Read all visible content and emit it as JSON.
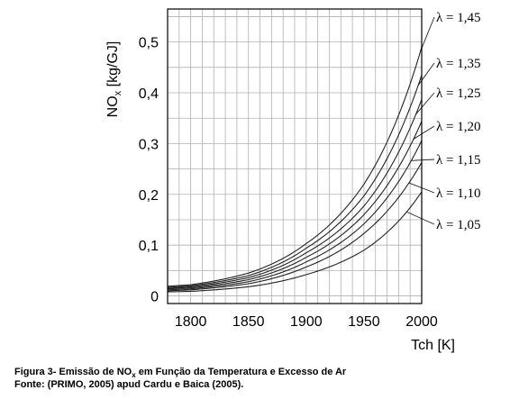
{
  "chart_data": {
    "type": "line",
    "xlabel": "Tch [K]",
    "ylabel": "NOx [kg/GJ]",
    "ylabel_main": "NO",
    "ylabel_sub": "x",
    "ylabel_rest": " [kg/GJ]",
    "xlim": [
      1780,
      2000
    ],
    "ylim": [
      -0.015,
      0.565
    ],
    "x_ticks": [
      1800,
      1850,
      1900,
      1950,
      2000
    ],
    "x_tick_labels": [
      "1800",
      "1850",
      "1900",
      "1950",
      "2000"
    ],
    "y_ticks": [
      0,
      0.1,
      0.2,
      0.3,
      0.4,
      0.5
    ],
    "y_tick_labels": [
      "0",
      "0,1",
      "0,2",
      "0,3",
      "0,4",
      "0,5"
    ],
    "grid": true,
    "legend_placement": "right",
    "series": [
      {
        "name": "λ = 1,45",
        "x": [
          1780,
          1800,
          1850,
          1900,
          1950,
          2000
        ],
        "y": [
          0.019,
          0.022,
          0.045,
          0.103,
          0.22,
          0.49
        ]
      },
      {
        "name": "λ = 1,35",
        "x": [
          1780,
          1800,
          1850,
          1900,
          1950,
          2000
        ],
        "y": [
          0.017,
          0.02,
          0.04,
          0.094,
          0.197,
          0.435
        ]
      },
      {
        "name": "λ = 1,25",
        "x": [
          1780,
          1800,
          1850,
          1900,
          1950,
          2000
        ],
        "y": [
          0.015,
          0.018,
          0.036,
          0.085,
          0.177,
          0.387
        ]
      },
      {
        "name": "λ = 1,20",
        "x": [
          1780,
          1800,
          1850,
          1900,
          1950,
          2000
        ],
        "y": [
          0.014,
          0.016,
          0.032,
          0.076,
          0.16,
          0.344
        ]
      },
      {
        "name": "λ = 1,15",
        "x": [
          1780,
          1800,
          1850,
          1900,
          1950,
          2000
        ],
        "y": [
          0.012,
          0.014,
          0.028,
          0.067,
          0.142,
          0.306
        ]
      },
      {
        "name": "λ = 1,10",
        "x": [
          1780,
          1800,
          1850,
          1900,
          1950,
          2000
        ],
        "y": [
          0.01,
          0.012,
          0.024,
          0.057,
          0.123,
          0.263
        ]
      },
      {
        "name": "λ = 1,05",
        "x": [
          1780,
          1800,
          1850,
          1900,
          1950,
          2000
        ],
        "y": [
          0.008,
          0.009,
          0.018,
          0.042,
          0.09,
          0.205
        ]
      }
    ]
  },
  "caption": {
    "line1_prefix": "Figura 3- Emissão de NO",
    "line1_sub": "x",
    "line1_suffix": " em Função da Temperatura e Excesso de Ar",
    "line2": "Fonte: (PRIMO, 2005) apud Cardu e Baica (2005)."
  }
}
